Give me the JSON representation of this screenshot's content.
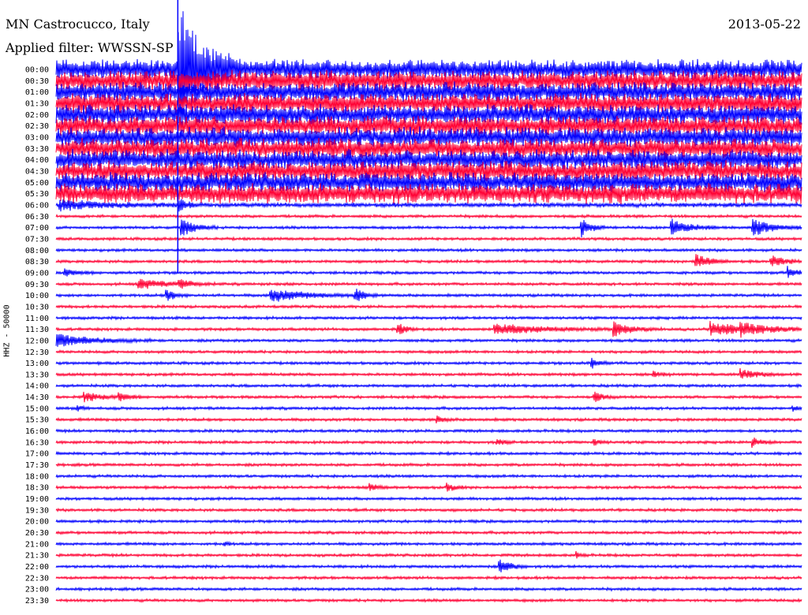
{
  "header": {
    "station": "MN Castrocucco, Italy",
    "date": "2013-05-22",
    "filter": "Applied filter: WWSSN-SP"
  },
  "y_axis_label": "HHZ - 50000",
  "colors": {
    "blue": "#0000ff",
    "red": "#ff0033"
  },
  "chart_data": {
    "type": "line",
    "title": "",
    "xlabel": "",
    "ylabel": "HHZ - 50000",
    "x_unit": "minutes within 30-minute line",
    "xlim": [
      0,
      30
    ],
    "row_labels": [
      "00:00",
      "00:30",
      "01:00",
      "01:30",
      "02:00",
      "02:30",
      "03:00",
      "03:30",
      "04:00",
      "04:30",
      "05:00",
      "05:30",
      "06:00",
      "06:30",
      "07:00",
      "07:30",
      "08:00",
      "08:30",
      "09:00",
      "09:30",
      "10:00",
      "10:30",
      "11:00",
      "11:30",
      "12:00",
      "12:30",
      "13:00",
      "13:30",
      "14:00",
      "14:30",
      "15:00",
      "15:30",
      "16:00",
      "16:30",
      "17:00",
      "17:30",
      "18:00",
      "18:30",
      "19:00",
      "19:30",
      "20:00",
      "20:30",
      "21:00",
      "21:30",
      "22:00",
      "22:30",
      "23:00",
      "23:30"
    ],
    "row_colors": [
      "blue",
      "red"
    ],
    "background_noise": [
      14,
      14,
      14,
      14,
      14,
      14,
      14,
      14,
      14,
      14,
      14,
      14,
      3,
      2,
      2,
      2,
      2,
      2,
      2,
      2,
      2,
      2,
      2,
      2,
      2,
      2,
      2,
      2,
      2,
      2,
      2,
      2,
      2,
      2,
      2,
      2,
      2,
      2,
      2,
      2,
      2,
      2,
      2,
      2,
      2,
      2,
      2,
      2
    ],
    "events": [
      {
        "row": 0,
        "t": 4.9,
        "amp": 90,
        "dur": 2.5
      },
      {
        "row": 12,
        "t": 0.1,
        "amp": 6,
        "dur": 5.0
      },
      {
        "row": 12,
        "t": 4.9,
        "amp": 8,
        "dur": 1.0
      },
      {
        "row": 14,
        "t": 5.0,
        "amp": 12,
        "dur": 1.5
      },
      {
        "row": 14,
        "t": 21.1,
        "amp": 14,
        "dur": 1.0
      },
      {
        "row": 14,
        "t": 24.7,
        "amp": 12,
        "dur": 2.0
      },
      {
        "row": 14,
        "t": 28.0,
        "amp": 12,
        "dur": 2.0
      },
      {
        "row": 17,
        "t": 25.7,
        "amp": 10,
        "dur": 1.5
      },
      {
        "row": 17,
        "t": 28.7,
        "amp": 8,
        "dur": 1.5
      },
      {
        "row": 18,
        "t": 0.3,
        "amp": 5,
        "dur": 1.5
      },
      {
        "row": 18,
        "t": 29.4,
        "amp": 8,
        "dur": 1.0
      },
      {
        "row": 19,
        "t": 3.3,
        "amp": 7,
        "dur": 2.5
      },
      {
        "row": 19,
        "t": 4.9,
        "amp": 6,
        "dur": 1.5
      },
      {
        "row": 20,
        "t": 4.4,
        "amp": 8,
        "dur": 1.0
      },
      {
        "row": 20,
        "t": 8.6,
        "amp": 8,
        "dur": 4.0
      },
      {
        "row": 20,
        "t": 12.0,
        "amp": 9,
        "dur": 1.0
      },
      {
        "row": 23,
        "t": 13.7,
        "amp": 8,
        "dur": 1.0
      },
      {
        "row": 23,
        "t": 17.6,
        "amp": 7,
        "dur": 5.0
      },
      {
        "row": 23,
        "t": 22.4,
        "amp": 9,
        "dur": 2.0
      },
      {
        "row": 23,
        "t": 26.3,
        "amp": 9,
        "dur": 4.0
      },
      {
        "row": 23,
        "t": 27.5,
        "amp": 6,
        "dur": 2.5
      },
      {
        "row": 24,
        "t": 0.0,
        "amp": 8,
        "dur": 4.0
      },
      {
        "row": 26,
        "t": 21.5,
        "amp": 8,
        "dur": 0.8
      },
      {
        "row": 27,
        "t": 24.0,
        "amp": 4,
        "dur": 0.8
      },
      {
        "row": 27,
        "t": 27.5,
        "amp": 7,
        "dur": 1.8
      },
      {
        "row": 29,
        "t": 1.1,
        "amp": 6,
        "dur": 1.8
      },
      {
        "row": 29,
        "t": 2.5,
        "amp": 6,
        "dur": 1.2
      },
      {
        "row": 29,
        "t": 21.6,
        "amp": 7,
        "dur": 1.0
      },
      {
        "row": 30,
        "t": 0.8,
        "amp": 4,
        "dur": 0.6
      },
      {
        "row": 30,
        "t": 29.6,
        "amp": 4,
        "dur": 0.6
      },
      {
        "row": 31,
        "t": 15.3,
        "amp": 5,
        "dur": 0.8
      },
      {
        "row": 33,
        "t": 17.7,
        "amp": 4,
        "dur": 0.8
      },
      {
        "row": 33,
        "t": 21.6,
        "amp": 4,
        "dur": 0.8
      },
      {
        "row": 33,
        "t": 28.0,
        "amp": 6,
        "dur": 1.0
      },
      {
        "row": 37,
        "t": 15.7,
        "amp": 6,
        "dur": 0.8
      },
      {
        "row": 37,
        "t": 12.6,
        "amp": 5,
        "dur": 0.8
      },
      {
        "row": 42,
        "t": 6.7,
        "amp": 3,
        "dur": 0.6
      },
      {
        "row": 43,
        "t": 20.9,
        "amp": 4,
        "dur": 0.6
      },
      {
        "row": 44,
        "t": 17.8,
        "amp": 10,
        "dur": 1.2
      }
    ]
  }
}
